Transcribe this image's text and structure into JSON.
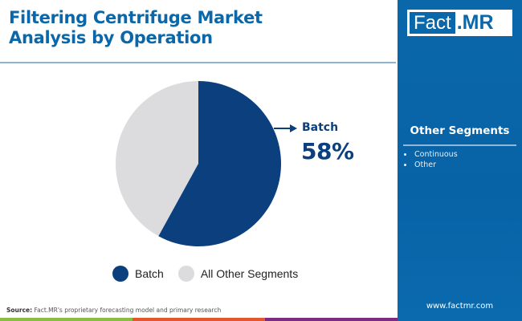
{
  "header": {
    "title_line1": "Filtering Centrifuge Market",
    "title_line2": "Analysis by Operation"
  },
  "brand": {
    "logo_left": "Fact",
    "logo_right": ".MR",
    "website": "www.factmr.com"
  },
  "side_panel": {
    "title": "Other Segments",
    "items": [
      "Continuous",
      "Other"
    ]
  },
  "callout": {
    "label": "Batch",
    "value": "58%"
  },
  "legend": {
    "items": [
      {
        "label": "Batch",
        "color": "#0b3f7e"
      },
      {
        "label": "All Other Segments",
        "color": "#dcdbde"
      }
    ]
  },
  "footer": {
    "source_label": "Source:",
    "source_text": "Fact.MR's proprietary forecasting model and primary research"
  },
  "colors": {
    "title_blue": "#0a67aa",
    "batch": "#0b3f7e",
    "other": "#dcdbde",
    "bar_green": "#8bbd45",
    "bar_orange": "#e2572b",
    "bar_purple": "#7d2a82",
    "panel_blue": "#0a67aa"
  },
  "chart_data": {
    "type": "pie",
    "title": "Filtering Centrifuge Market Analysis by Operation",
    "categories": [
      "Batch",
      "All Other Segments"
    ],
    "values": [
      58,
      42
    ],
    "unit": "%",
    "colors": [
      "#0b3f7e",
      "#dcdbde"
    ],
    "annotations": [
      {
        "label": "Batch",
        "value": "58%"
      }
    ],
    "legend_position": "bottom"
  }
}
